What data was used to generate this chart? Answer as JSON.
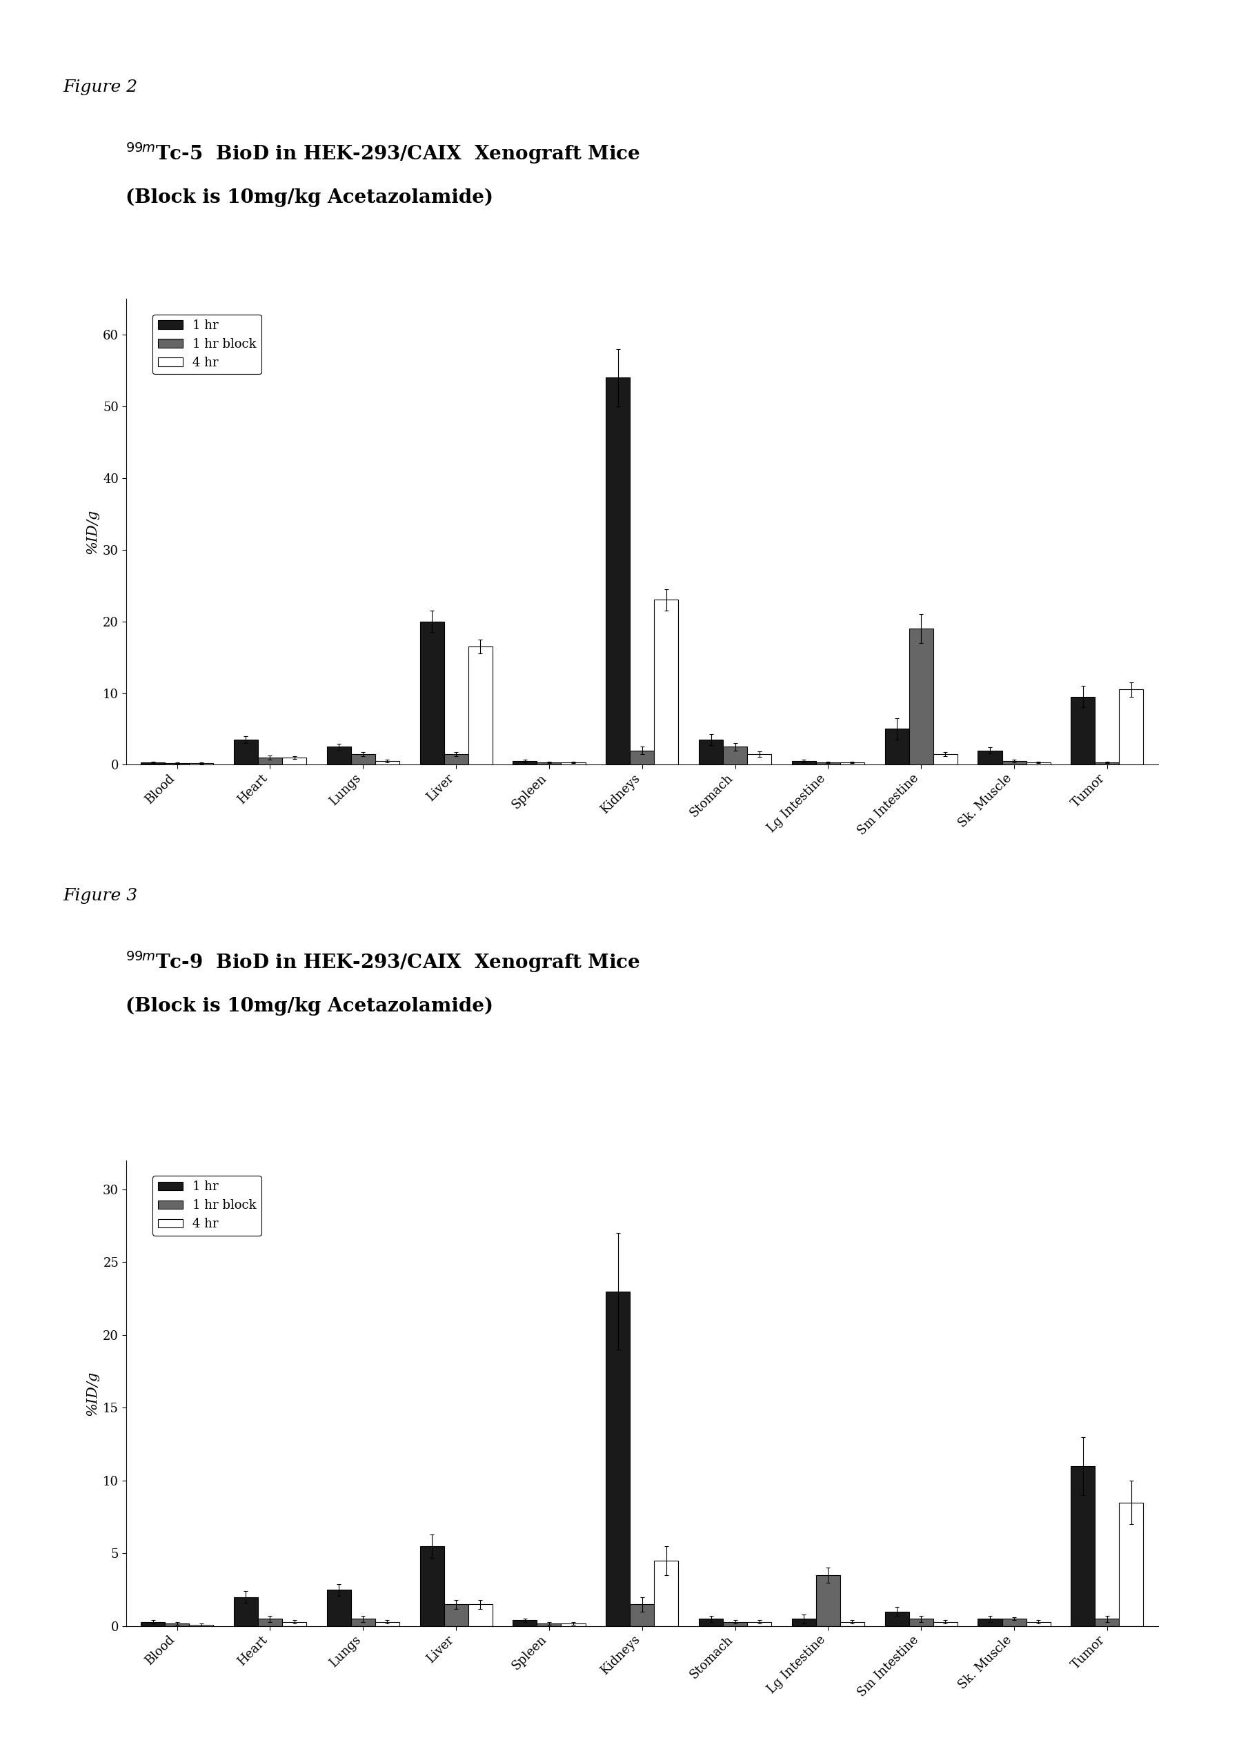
{
  "fig2": {
    "title_line1": "$^{99m}$Tc-5  BioD in HEK-293/CAIX  Xenograft Mice",
    "title_line2": "(Block is 10mg/kg Acetazolamide)",
    "figure_label": "Figure 2",
    "ylabel": "%ID/g",
    "ylim": [
      0,
      65
    ],
    "yticks": [
      0,
      10,
      20,
      30,
      40,
      50,
      60
    ],
    "categories": [
      "Blood",
      "Heart",
      "Lungs",
      "Liver",
      "Spleen",
      "Kidneys",
      "Stomach",
      "Lg Intestine",
      "Sm Intestine",
      "Sk. Muscle",
      "Tumor"
    ],
    "series": {
      "1hr": [
        0.3,
        3.5,
        2.5,
        20.0,
        0.5,
        54.0,
        3.5,
        0.5,
        5.0,
        2.0,
        9.5
      ],
      "1hr_block": [
        0.2,
        1.0,
        1.5,
        1.5,
        0.3,
        2.0,
        2.5,
        0.3,
        19.0,
        0.5,
        0.3
      ],
      "4hr": [
        0.2,
        1.0,
        0.5,
        16.5,
        0.3,
        23.0,
        1.5,
        0.3,
        1.5,
        0.3,
        10.5
      ]
    },
    "errors": {
      "1hr": [
        0.1,
        0.5,
        0.4,
        1.5,
        0.2,
        4.0,
        0.8,
        0.2,
        1.5,
        0.4,
        1.5
      ],
      "1hr_block": [
        0.1,
        0.3,
        0.3,
        0.3,
        0.1,
        0.5,
        0.5,
        0.1,
        2.0,
        0.2,
        0.1
      ],
      "4hr": [
        0.1,
        0.2,
        0.2,
        1.0,
        0.1,
        1.5,
        0.4,
        0.1,
        0.3,
        0.1,
        1.0
      ]
    },
    "legend_labels": [
      "1 hr",
      "1 hr block",
      "4 hr"
    ],
    "bar_colors": [
      "#1a1a1a",
      "#666666",
      "#ffffff"
    ]
  },
  "fig3": {
    "title_line1": "$^{99m}$Tc-9  BioD in HEK-293/CAIX  Xenograft Mice",
    "title_line2": "(Block is 10mg/kg Acetazolamide)",
    "figure_label": "Figure 3",
    "ylabel": "%ID/g",
    "ylim": [
      0,
      32
    ],
    "yticks": [
      0,
      5,
      10,
      15,
      20,
      25,
      30
    ],
    "categories": [
      "Blood",
      "Heart",
      "Lungs",
      "Liver",
      "Spleen",
      "Kidneys",
      "Stomach",
      "Lg Intestine",
      "Sm Intestine",
      "Sk. Muscle",
      "Tumor"
    ],
    "series": {
      "1hr": [
        0.3,
        2.0,
        2.5,
        5.5,
        0.4,
        23.0,
        0.5,
        0.5,
        1.0,
        0.5,
        11.0
      ],
      "1hr_block": [
        0.2,
        0.5,
        0.5,
        1.5,
        0.2,
        1.5,
        0.3,
        3.5,
        0.5,
        0.5,
        0.5
      ],
      "4hr": [
        0.1,
        0.3,
        0.3,
        1.5,
        0.2,
        4.5,
        0.3,
        0.3,
        0.3,
        0.3,
        8.5
      ]
    },
    "errors": {
      "1hr": [
        0.1,
        0.4,
        0.4,
        0.8,
        0.1,
        4.0,
        0.2,
        0.3,
        0.3,
        0.2,
        2.0
      ],
      "1hr_block": [
        0.1,
        0.2,
        0.2,
        0.3,
        0.1,
        0.5,
        0.1,
        0.5,
        0.2,
        0.1,
        0.2
      ],
      "4hr": [
        0.1,
        0.1,
        0.1,
        0.3,
        0.1,
        1.0,
        0.1,
        0.1,
        0.1,
        0.1,
        1.5
      ]
    },
    "legend_labels": [
      "1 hr",
      "1 hr block",
      "4 hr"
    ],
    "bar_colors": [
      "#1a1a1a",
      "#666666",
      "#ffffff"
    ]
  },
  "background_color": "#ffffff",
  "bar_width": 0.26,
  "figure_label_fontsize": 18,
  "title_fontsize": 20,
  "axis_label_fontsize": 15,
  "tick_fontsize": 13,
  "legend_fontsize": 13
}
